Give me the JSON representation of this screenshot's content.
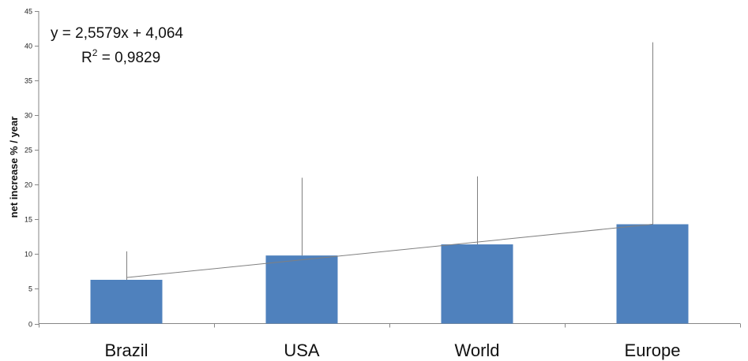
{
  "chart_data": {
    "type": "bar",
    "title": "",
    "xlabel": "",
    "ylabel": "net increase % / year",
    "ylim": [
      0,
      45
    ],
    "yticks": [
      0,
      5,
      10,
      15,
      20,
      25,
      30,
      35,
      40,
      45
    ],
    "categories": [
      "Brazil",
      "USA",
      "World",
      "Europe"
    ],
    "series": [
      {
        "values": [
          6.3,
          9.8,
          11.4,
          14.3
        ],
        "error_upper": [
          10.4,
          21.0,
          21.2,
          40.5
        ],
        "color": "#4f81bd"
      }
    ],
    "trendline": {
      "type": "linear",
      "slope": 2.5579,
      "intercept": 4.064,
      "color": "#808080"
    },
    "annotations": {
      "equation": "y = 2,5579x + 4,064",
      "r_squared_prefix": "R",
      "r_squared_superscript": "2",
      "r_squared_value": " = 0,9829"
    },
    "grid": false,
    "legend": "none"
  }
}
